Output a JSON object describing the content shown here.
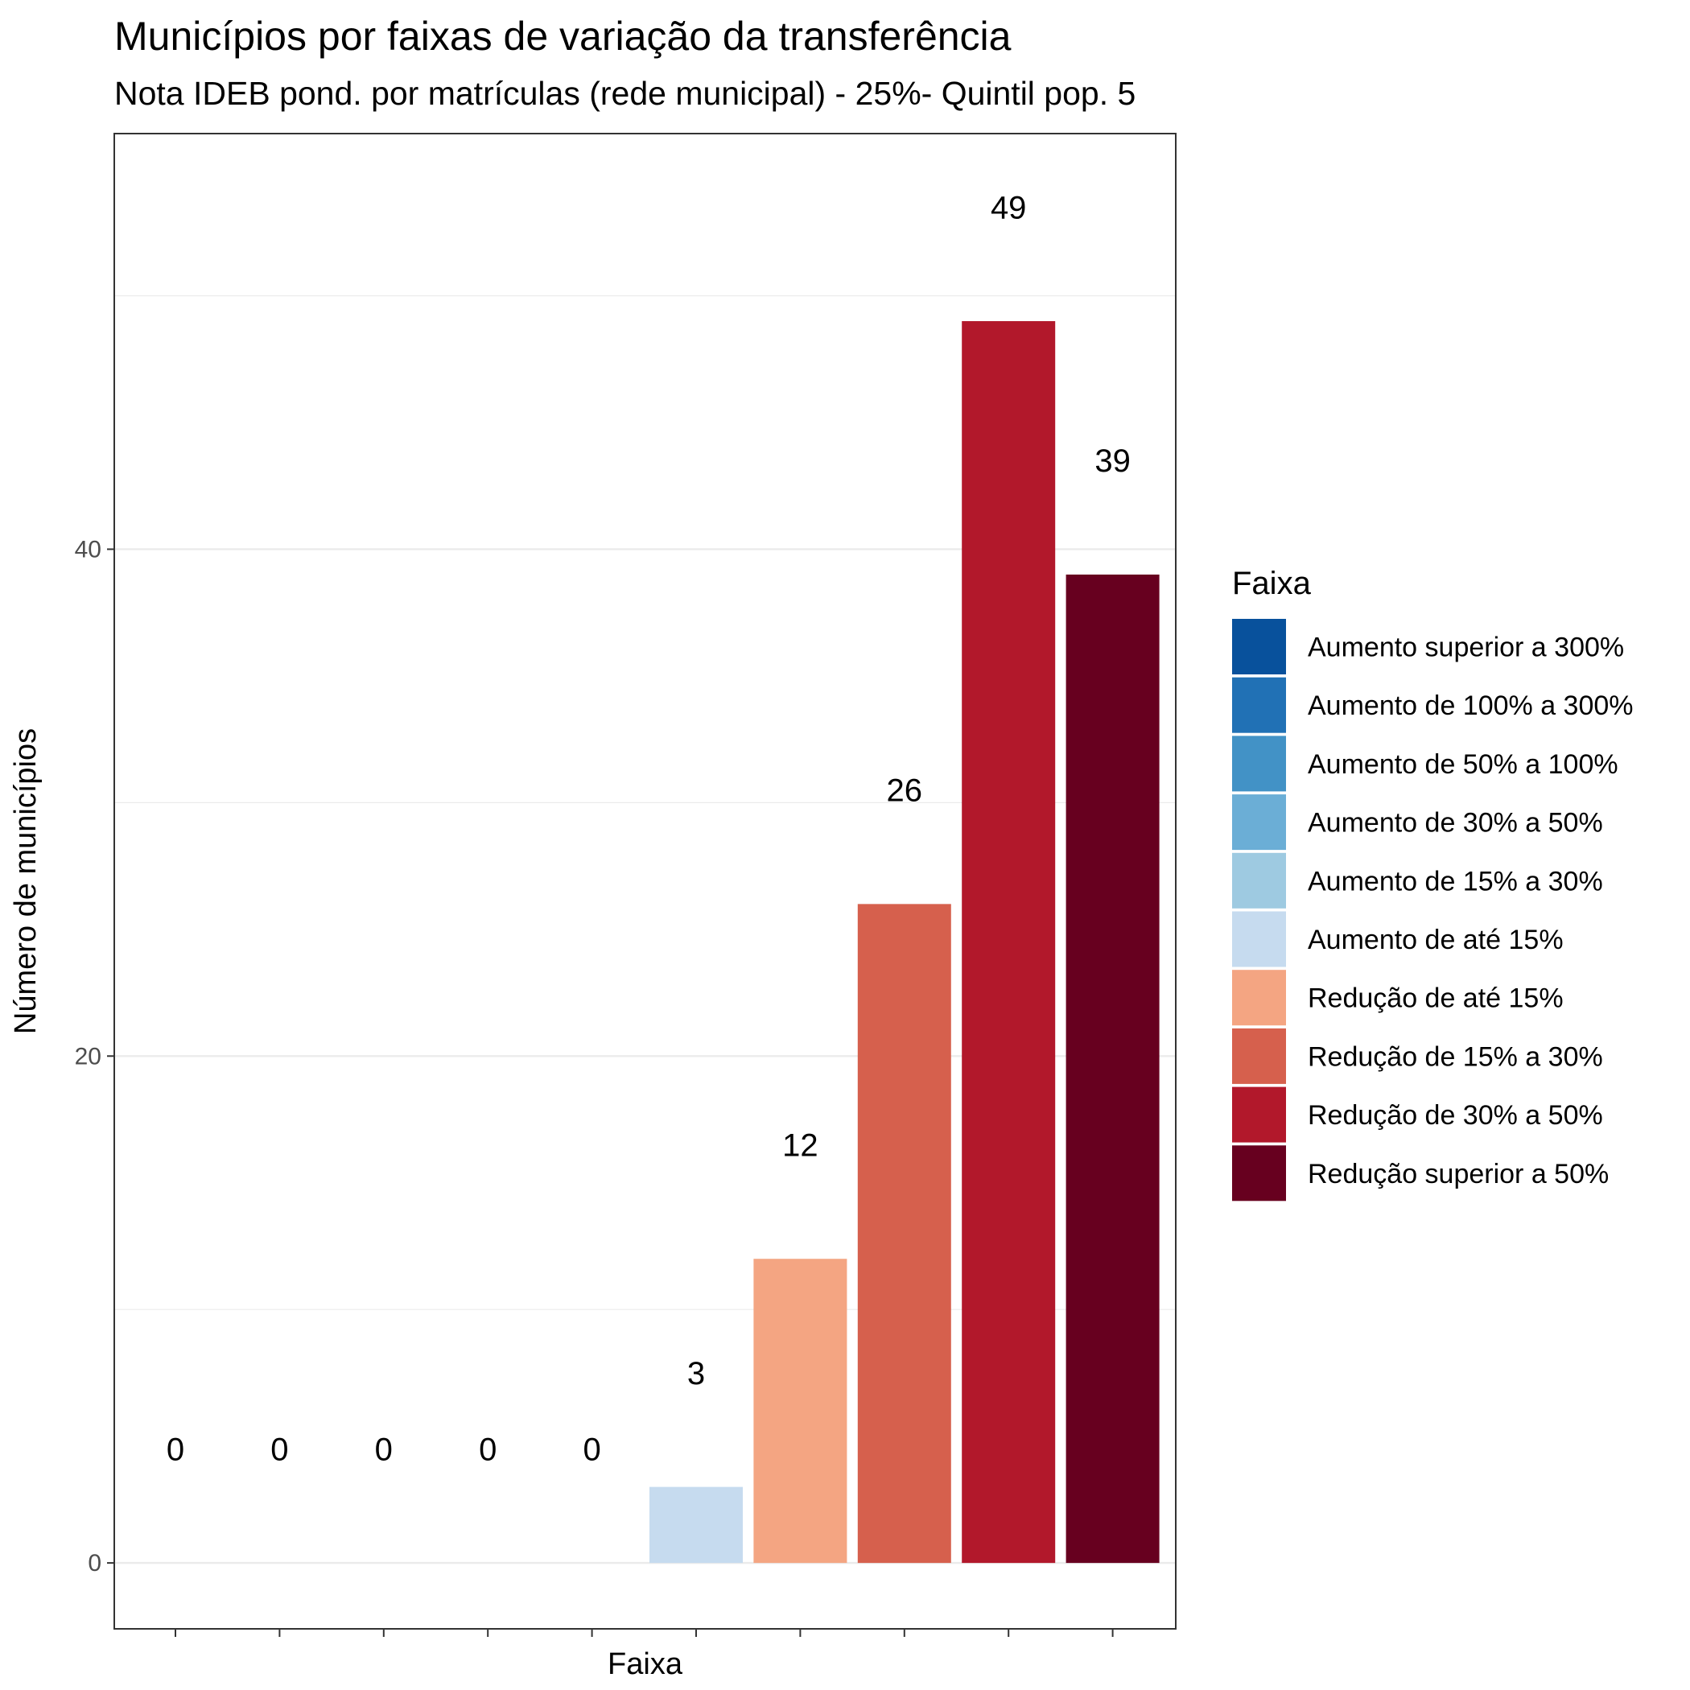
{
  "chart_data": {
    "type": "bar",
    "title": "Municípios por faixas de variação da transferência",
    "subtitle": "Nota IDEB pond. por matrículas (rede municipal) - 25%- Quintil pop. 5",
    "xlabel": "Faixa",
    "ylabel": "Número de municípios",
    "ylim": [
      -2.6,
      56.4
    ],
    "y_ticks": [
      0,
      20,
      40
    ],
    "y_minor_ticks": [
      10,
      30,
      50
    ],
    "grid": true,
    "categories": [
      "Aumento superior a 300%",
      "Aumento de 100% a 300%",
      "Aumento de 50% a 100%",
      "Aumento de 30% a 50%",
      "Aumento de 15% a 30%",
      "Aumento de até 15%",
      "Redução de até 15%",
      "Redução de 15% a 30%",
      "Redução de 30% a 50%",
      "Redução superior a 50%"
    ],
    "values": [
      0,
      0,
      0,
      0,
      0,
      3,
      12,
      26,
      49,
      39
    ],
    "colors": [
      "#08519c",
      "#2171b5",
      "#4292c6",
      "#6baed6",
      "#9ecae1",
      "#c6dbef",
      "#f4a582",
      "#d6604d",
      "#b2182b",
      "#67001f"
    ],
    "legend": {
      "title": "Faixa",
      "placement": "right"
    }
  }
}
